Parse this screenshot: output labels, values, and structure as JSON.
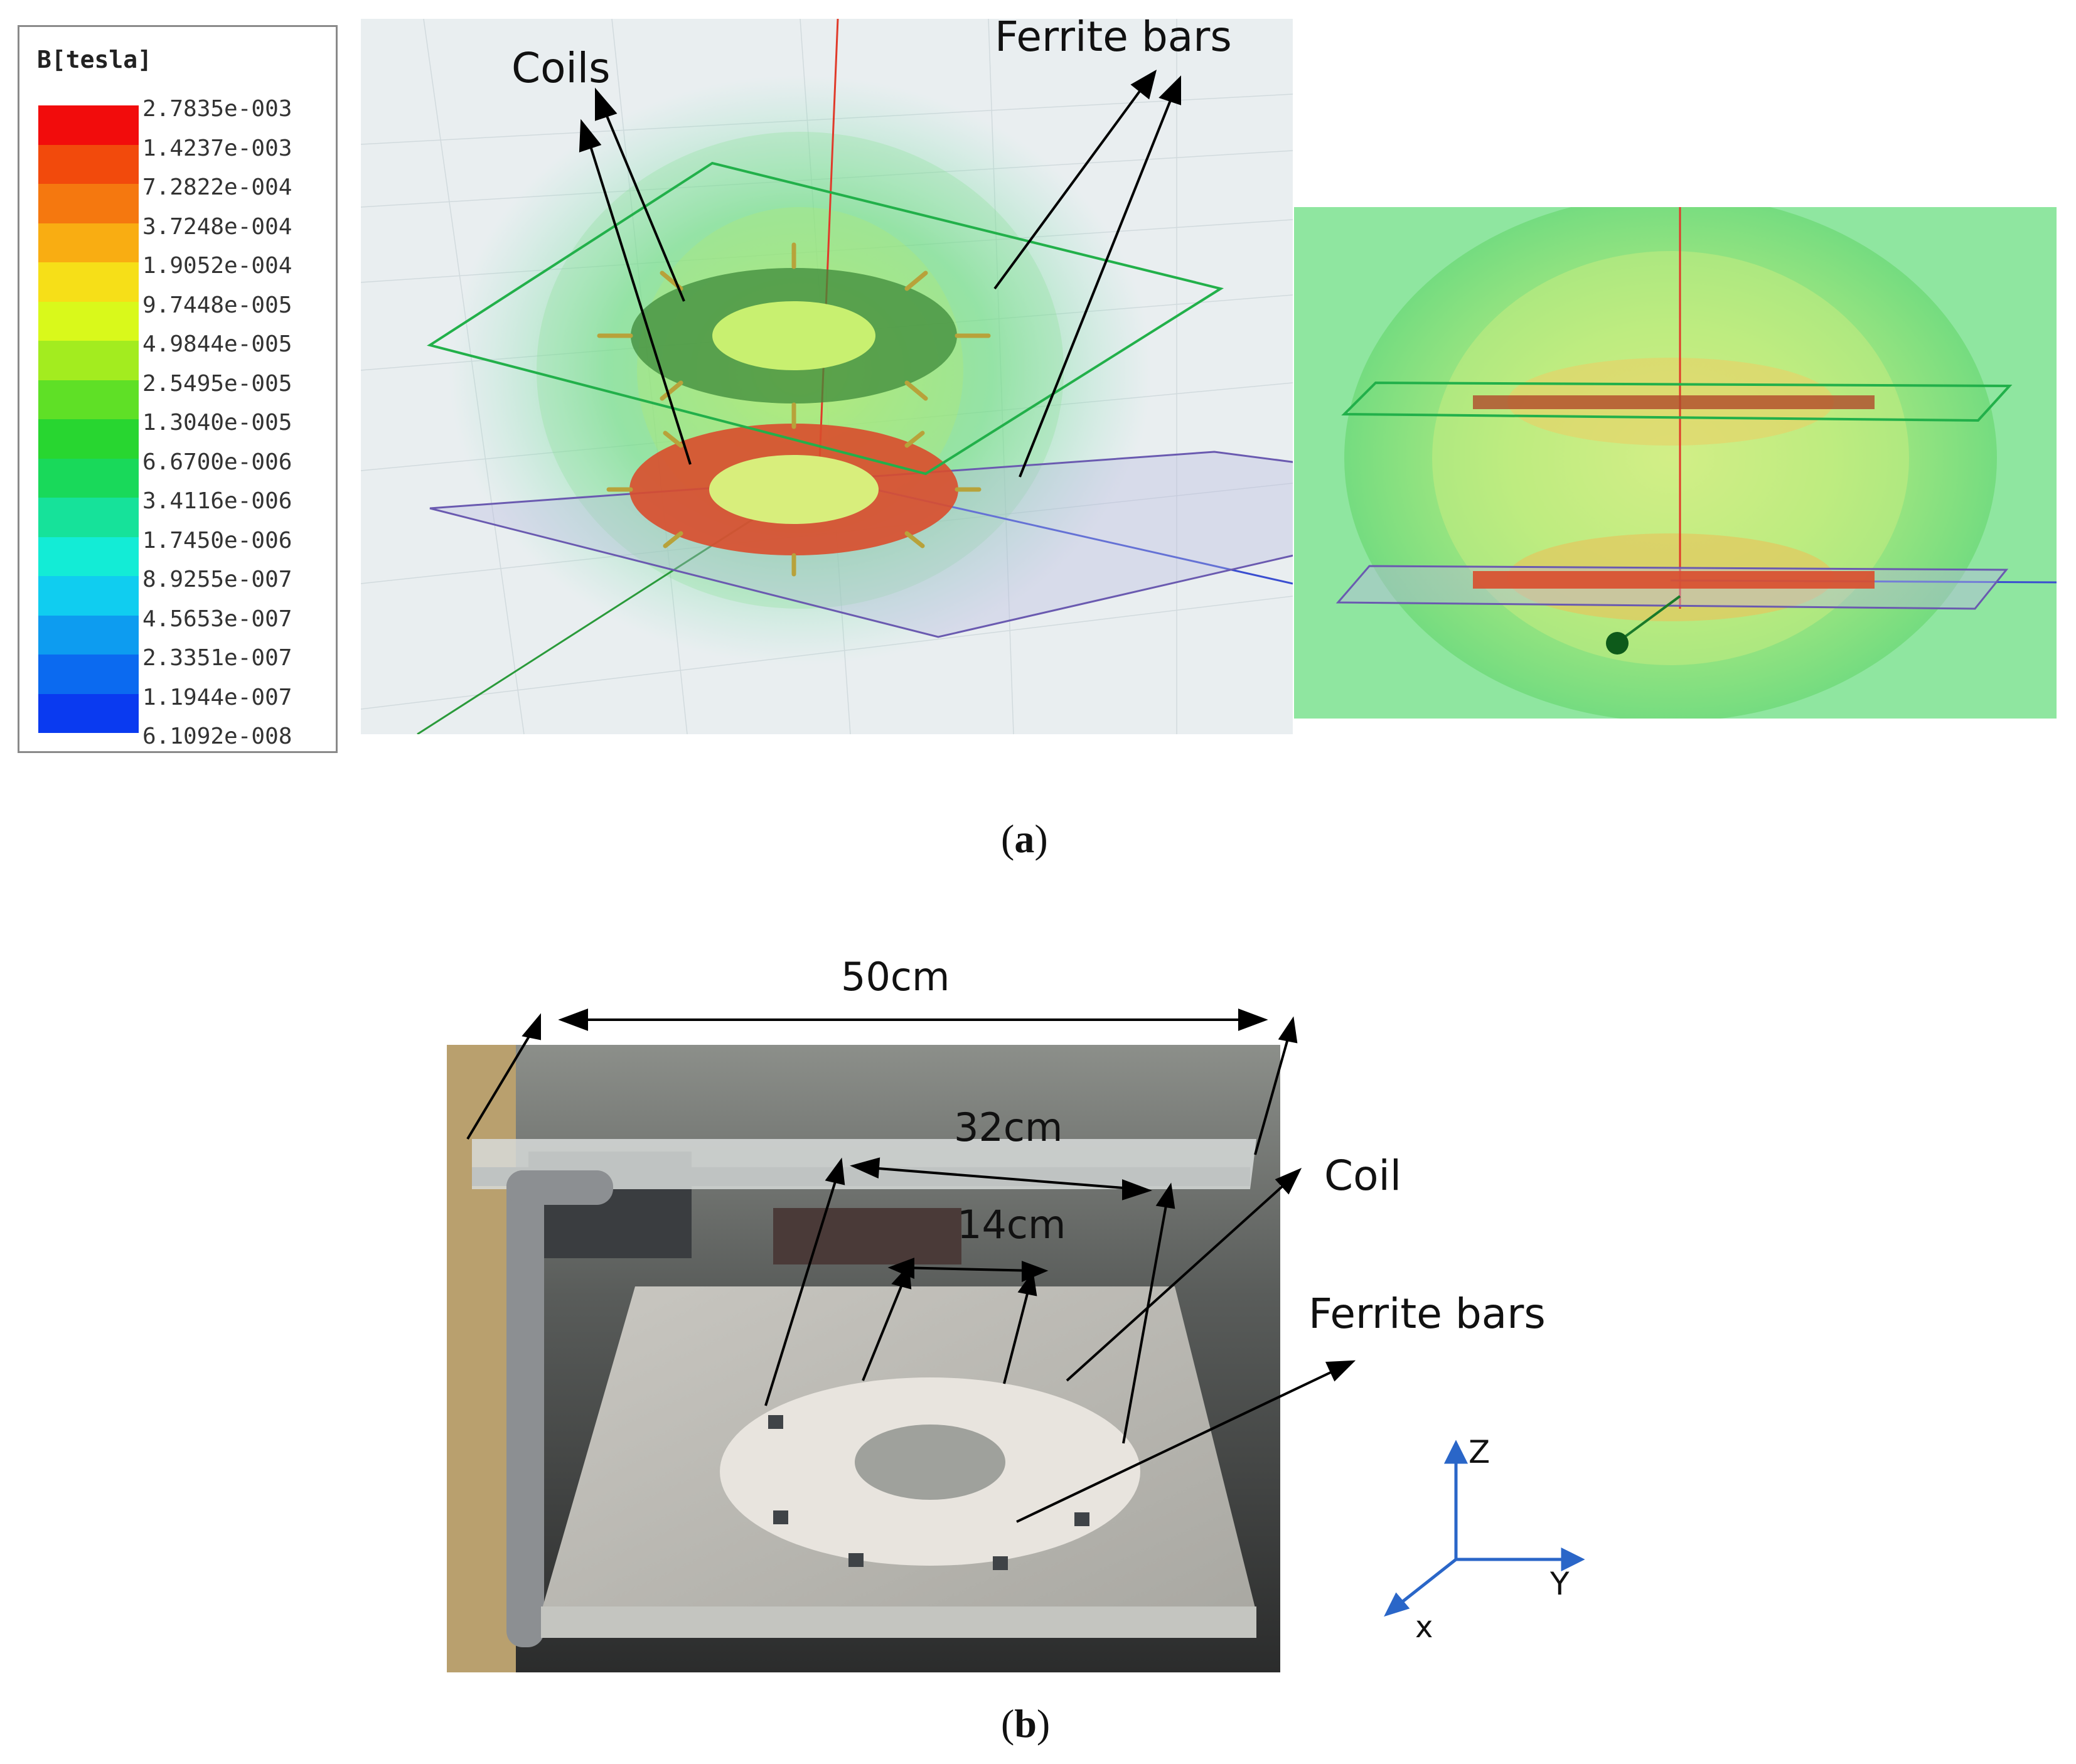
{
  "legend": {
    "title": "B[tesla]",
    "labels": [
      "2.7835e-003",
      "1.4237e-003",
      "7.2822e-004",
      "3.7248e-004",
      "1.9052e-004",
      "9.7448e-005",
      "4.9844e-005",
      "2.5495e-005",
      "1.3040e-005",
      "6.6700e-006",
      "3.4116e-006",
      "1.7450e-006",
      "8.9255e-007",
      "4.5653e-007",
      "2.3351e-007",
      "1.1944e-007",
      "6.1092e-008"
    ],
    "colors": [
      "#f20c0c",
      "#f24a0c",
      "#f5780f",
      "#f9ad12",
      "#f6df18",
      "#d9f91b",
      "#a3ec1f",
      "#5fe026",
      "#28d630",
      "#19d95a",
      "#16e29a",
      "#13ecd6",
      "#10cdf0",
      "#0d9cf0",
      "#0b6af0",
      "#0a3af0"
    ]
  },
  "panel_a": {
    "label_coils": "Coils",
    "label_ferrite": "Ferrite bars",
    "caption": "a"
  },
  "panel_b": {
    "dim_outer": "50cm",
    "dim_coil": "32cm",
    "dim_inner": "14cm",
    "label_coil": "Coil",
    "label_ferrite": "Ferrite bars",
    "axis_z": "Z",
    "axis_y": "Y",
    "axis_x": "x",
    "caption": "b"
  }
}
